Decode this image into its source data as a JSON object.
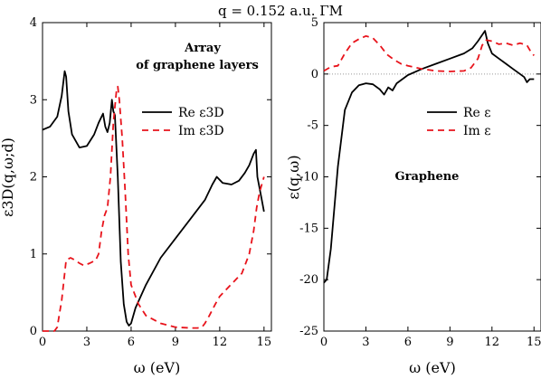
{
  "figure_title": "q = 0.152 a.u. ΓM",
  "chart_data": [
    {
      "type": "line",
      "panel": "left",
      "title": "",
      "xlabel": "ω (eV)",
      "ylabel": "ε3D(q,ω;d)",
      "xlim": [
        0,
        15.5
      ],
      "ylim": [
        0,
        4
      ],
      "xticks": [
        0,
        3,
        6,
        9,
        12,
        15
      ],
      "yticks": [
        0,
        1,
        2,
        3,
        4
      ],
      "annotation": [
        "Array",
        "of graphene layers"
      ],
      "legend_position": "right",
      "series": [
        {
          "name": "Re ε3D",
          "color": "#000000",
          "dash": "solid",
          "x": [
            0,
            0.5,
            1.0,
            1.3,
            1.5,
            1.6,
            1.75,
            2.0,
            2.5,
            3.0,
            3.5,
            3.8,
            4.1,
            4.25,
            4.4,
            4.55,
            4.7,
            4.8,
            4.9,
            5.1,
            5.3,
            5.5,
            5.7,
            5.85,
            6.0,
            6.3,
            7.0,
            8.0,
            9.0,
            10.0,
            11.0,
            11.5,
            11.8,
            12.2,
            12.8,
            13.3,
            13.7,
            14.0,
            14.3,
            14.45,
            14.55,
            14.8,
            15.0
          ],
          "y": [
            2.61,
            2.65,
            2.78,
            3.05,
            3.37,
            3.3,
            2.85,
            2.55,
            2.38,
            2.4,
            2.55,
            2.7,
            2.82,
            2.65,
            2.58,
            2.7,
            3.0,
            2.85,
            2.8,
            2.0,
            0.9,
            0.35,
            0.12,
            0.07,
            0.1,
            0.3,
            0.6,
            0.95,
            1.2,
            1.45,
            1.7,
            1.9,
            2.0,
            1.92,
            1.9,
            1.95,
            2.05,
            2.15,
            2.3,
            2.35,
            2.0,
            1.75,
            1.55
          ]
        },
        {
          "name": "Im ε3D",
          "color": "#e8131b",
          "dash": "dashed",
          "x": [
            0,
            0.8,
            1.0,
            1.3,
            1.6,
            1.9,
            2.2,
            2.5,
            2.8,
            3.2,
            3.6,
            3.8,
            4.0,
            4.2,
            4.4,
            4.6,
            4.8,
            5.0,
            5.1,
            5.2,
            5.4,
            5.6,
            5.8,
            6.0,
            6.5,
            7.0,
            8.0,
            9.0,
            10.0,
            10.5,
            10.8,
            11.0,
            11.3,
            11.7,
            12.0,
            12.5,
            13.0,
            13.5,
            14.0,
            14.3,
            14.5,
            14.7,
            15.0
          ],
          "y": [
            0,
            0,
            0.05,
            0.4,
            0.92,
            0.95,
            0.92,
            0.88,
            0.85,
            0.88,
            0.92,
            1.0,
            1.3,
            1.5,
            1.6,
            2.0,
            2.7,
            3.1,
            3.17,
            3.0,
            2.5,
            1.8,
            1.0,
            0.6,
            0.35,
            0.2,
            0.1,
            0.05,
            0.04,
            0.04,
            0.05,
            0.1,
            0.2,
            0.35,
            0.45,
            0.55,
            0.65,
            0.75,
            1.0,
            1.3,
            1.6,
            1.8,
            2.0
          ]
        }
      ]
    },
    {
      "type": "line",
      "panel": "right",
      "title": "",
      "xlabel": "ω (eV)",
      "ylabel": "ε(q,ω)",
      "xlim": [
        0,
        15.5
      ],
      "ylim": [
        -25,
        5
      ],
      "xticks": [
        0,
        3,
        6,
        9,
        12,
        15
      ],
      "yticks": [
        -25,
        -20,
        -15,
        -10,
        -5,
        0,
        5
      ],
      "annotation": [
        "Graphene"
      ],
      "zero_line": true,
      "legend_position": "right",
      "series": [
        {
          "name": "Re ε",
          "color": "#000000",
          "dash": "solid",
          "x": [
            0,
            0.2,
            0.5,
            1.0,
            1.5,
            2.0,
            2.5,
            3.0,
            3.5,
            4.0,
            4.3,
            4.6,
            4.9,
            5.2,
            6.0,
            7.0,
            8.0,
            9.0,
            10.0,
            10.6,
            11.0,
            11.3,
            11.5,
            11.7,
            12.0,
            12.5,
            13.0,
            13.5,
            14.0,
            14.3,
            14.5,
            14.7,
            15.0
          ],
          "y": [
            -20.3,
            -20.0,
            -17.0,
            -9.0,
            -3.5,
            -1.8,
            -1.1,
            -0.9,
            -1.0,
            -1.5,
            -2.0,
            -1.3,
            -1.6,
            -0.9,
            -0.1,
            0.5,
            1.0,
            1.5,
            2.0,
            2.5,
            3.2,
            3.8,
            4.2,
            3.0,
            2.0,
            1.5,
            1.0,
            0.5,
            0.0,
            -0.3,
            -0.8,
            -0.5,
            -0.5
          ]
        },
        {
          "name": "Im ε",
          "color": "#e8131b",
          "dash": "dashed",
          "x": [
            0,
            0.5,
            1.0,
            1.5,
            2.0,
            2.5,
            3.0,
            3.5,
            4.0,
            4.5,
            5.0,
            5.5,
            6.0,
            7.0,
            8.0,
            9.0,
            10.0,
            10.5,
            11.0,
            11.3,
            11.6,
            12.0,
            12.5,
            13.0,
            13.5,
            14.0,
            14.5,
            14.8,
            15.0
          ],
          "y": [
            0.3,
            0.7,
            0.8,
            2.0,
            3.0,
            3.4,
            3.7,
            3.5,
            2.8,
            1.9,
            1.4,
            1.0,
            0.8,
            0.5,
            0.3,
            0.25,
            0.3,
            0.6,
            1.5,
            2.8,
            3.3,
            3.2,
            2.9,
            3.0,
            2.8,
            3.0,
            2.8,
            2.1,
            1.8
          ]
        }
      ]
    }
  ]
}
